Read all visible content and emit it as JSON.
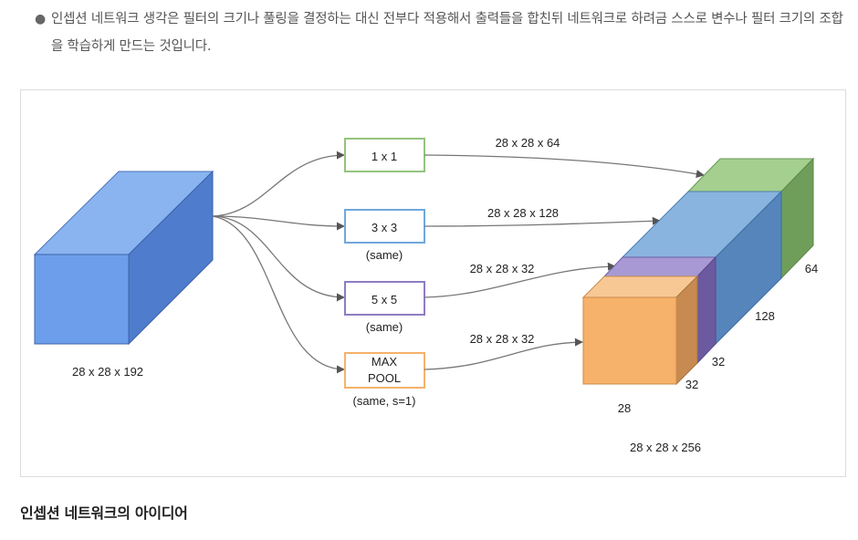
{
  "bullet_text": "인셉션 네트워크 생각은 필터의 크기나 풀링을 결정하는 대신 전부다 적용해서 출력들을 합친뒤 네트워크로 하려금 스스로 변수나 필터 크기의 조합을 학습하게 만드는 것입니다.",
  "diagram": {
    "input_label": "28 x 28 x 192",
    "branches": [
      {
        "box": "1 x 1",
        "sub": "",
        "output": "28 x 28 x 64"
      },
      {
        "box": "3 x 3",
        "sub": "(same)",
        "output": "28 x 28 x 128"
      },
      {
        "box": "5 x 5",
        "sub": "(same)",
        "output": "28 x 28 x 32"
      },
      {
        "box_line1": "MAX",
        "box_line2": "POOL",
        "sub": "(same, s=1)",
        "output": "28 x 28 x 32"
      }
    ],
    "dims": {
      "d64": "64",
      "d128": "128",
      "d32a": "32",
      "d32b": "32",
      "d28": "28"
    },
    "output_label": "28 x 28 x 256",
    "colors": {
      "input": "#6fa0e8",
      "conv1x1": "#93c47d",
      "conv3x3": "#6fa8dc",
      "conv5x5": "#8e7cc3",
      "pool": "#f6b26b"
    }
  },
  "section_heading": "인셉션 네트워크의 아이디어"
}
